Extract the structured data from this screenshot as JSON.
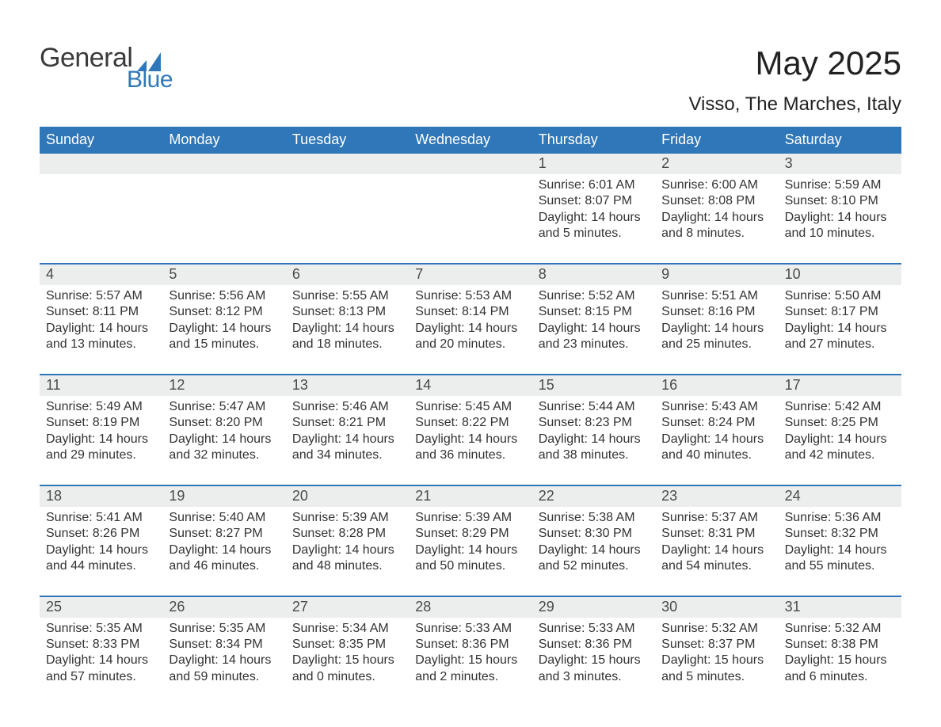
{
  "brand": {
    "text_general": "General",
    "text_blue": "Blue",
    "icon_color": "#2f77b8"
  },
  "title": {
    "month": "May 2025",
    "location": "Visso, The Marches, Italy"
  },
  "colors": {
    "header_bg": "#2f77b8",
    "header_text": "#ffffff",
    "strip_bg": "#eceded",
    "text": "#333333",
    "page_bg": "#ffffff",
    "week_border": "#2f77b8"
  },
  "weekdays": [
    "Sunday",
    "Monday",
    "Tuesday",
    "Wednesday",
    "Thursday",
    "Friday",
    "Saturday"
  ],
  "weeks": [
    [
      {
        "day": "",
        "lines": []
      },
      {
        "day": "",
        "lines": []
      },
      {
        "day": "",
        "lines": []
      },
      {
        "day": "",
        "lines": []
      },
      {
        "day": "1",
        "lines": [
          "Sunrise: 6:01 AM",
          "Sunset: 8:07 PM",
          "Daylight: 14 hours and 5 minutes."
        ]
      },
      {
        "day": "2",
        "lines": [
          "Sunrise: 6:00 AM",
          "Sunset: 8:08 PM",
          "Daylight: 14 hours and 8 minutes."
        ]
      },
      {
        "day": "3",
        "lines": [
          "Sunrise: 5:59 AM",
          "Sunset: 8:10 PM",
          "Daylight: 14 hours and 10 minutes."
        ]
      }
    ],
    [
      {
        "day": "4",
        "lines": [
          "Sunrise: 5:57 AM",
          "Sunset: 8:11 PM",
          "Daylight: 14 hours and 13 minutes."
        ]
      },
      {
        "day": "5",
        "lines": [
          "Sunrise: 5:56 AM",
          "Sunset: 8:12 PM",
          "Daylight: 14 hours and 15 minutes."
        ]
      },
      {
        "day": "6",
        "lines": [
          "Sunrise: 5:55 AM",
          "Sunset: 8:13 PM",
          "Daylight: 14 hours and 18 minutes."
        ]
      },
      {
        "day": "7",
        "lines": [
          "Sunrise: 5:53 AM",
          "Sunset: 8:14 PM",
          "Daylight: 14 hours and 20 minutes."
        ]
      },
      {
        "day": "8",
        "lines": [
          "Sunrise: 5:52 AM",
          "Sunset: 8:15 PM",
          "Daylight: 14 hours and 23 minutes."
        ]
      },
      {
        "day": "9",
        "lines": [
          "Sunrise: 5:51 AM",
          "Sunset: 8:16 PM",
          "Daylight: 14 hours and 25 minutes."
        ]
      },
      {
        "day": "10",
        "lines": [
          "Sunrise: 5:50 AM",
          "Sunset: 8:17 PM",
          "Daylight: 14 hours and 27 minutes."
        ]
      }
    ],
    [
      {
        "day": "11",
        "lines": [
          "Sunrise: 5:49 AM",
          "Sunset: 8:19 PM",
          "Daylight: 14 hours and 29 minutes."
        ]
      },
      {
        "day": "12",
        "lines": [
          "Sunrise: 5:47 AM",
          "Sunset: 8:20 PM",
          "Daylight: 14 hours and 32 minutes."
        ]
      },
      {
        "day": "13",
        "lines": [
          "Sunrise: 5:46 AM",
          "Sunset: 8:21 PM",
          "Daylight: 14 hours and 34 minutes."
        ]
      },
      {
        "day": "14",
        "lines": [
          "Sunrise: 5:45 AM",
          "Sunset: 8:22 PM",
          "Daylight: 14 hours and 36 minutes."
        ]
      },
      {
        "day": "15",
        "lines": [
          "Sunrise: 5:44 AM",
          "Sunset: 8:23 PM",
          "Daylight: 14 hours and 38 minutes."
        ]
      },
      {
        "day": "16",
        "lines": [
          "Sunrise: 5:43 AM",
          "Sunset: 8:24 PM",
          "Daylight: 14 hours and 40 minutes."
        ]
      },
      {
        "day": "17",
        "lines": [
          "Sunrise: 5:42 AM",
          "Sunset: 8:25 PM",
          "Daylight: 14 hours and 42 minutes."
        ]
      }
    ],
    [
      {
        "day": "18",
        "lines": [
          "Sunrise: 5:41 AM",
          "Sunset: 8:26 PM",
          "Daylight: 14 hours and 44 minutes."
        ]
      },
      {
        "day": "19",
        "lines": [
          "Sunrise: 5:40 AM",
          "Sunset: 8:27 PM",
          "Daylight: 14 hours and 46 minutes."
        ]
      },
      {
        "day": "20",
        "lines": [
          "Sunrise: 5:39 AM",
          "Sunset: 8:28 PM",
          "Daylight: 14 hours and 48 minutes."
        ]
      },
      {
        "day": "21",
        "lines": [
          "Sunrise: 5:39 AM",
          "Sunset: 8:29 PM",
          "Daylight: 14 hours and 50 minutes."
        ]
      },
      {
        "day": "22",
        "lines": [
          "Sunrise: 5:38 AM",
          "Sunset: 8:30 PM",
          "Daylight: 14 hours and 52 minutes."
        ]
      },
      {
        "day": "23",
        "lines": [
          "Sunrise: 5:37 AM",
          "Sunset: 8:31 PM",
          "Daylight: 14 hours and 54 minutes."
        ]
      },
      {
        "day": "24",
        "lines": [
          "Sunrise: 5:36 AM",
          "Sunset: 8:32 PM",
          "Daylight: 14 hours and 55 minutes."
        ]
      }
    ],
    [
      {
        "day": "25",
        "lines": [
          "Sunrise: 5:35 AM",
          "Sunset: 8:33 PM",
          "Daylight: 14 hours and 57 minutes."
        ]
      },
      {
        "day": "26",
        "lines": [
          "Sunrise: 5:35 AM",
          "Sunset: 8:34 PM",
          "Daylight: 14 hours and 59 minutes."
        ]
      },
      {
        "day": "27",
        "lines": [
          "Sunrise: 5:34 AM",
          "Sunset: 8:35 PM",
          "Daylight: 15 hours and 0 minutes."
        ]
      },
      {
        "day": "28",
        "lines": [
          "Sunrise: 5:33 AM",
          "Sunset: 8:36 PM",
          "Daylight: 15 hours and 2 minutes."
        ]
      },
      {
        "day": "29",
        "lines": [
          "Sunrise: 5:33 AM",
          "Sunset: 8:36 PM",
          "Daylight: 15 hours and 3 minutes."
        ]
      },
      {
        "day": "30",
        "lines": [
          "Sunrise: 5:32 AM",
          "Sunset: 8:37 PM",
          "Daylight: 15 hours and 5 minutes."
        ]
      },
      {
        "day": "31",
        "lines": [
          "Sunrise: 5:32 AM",
          "Sunset: 8:38 PM",
          "Daylight: 15 hours and 6 minutes."
        ]
      }
    ]
  ]
}
